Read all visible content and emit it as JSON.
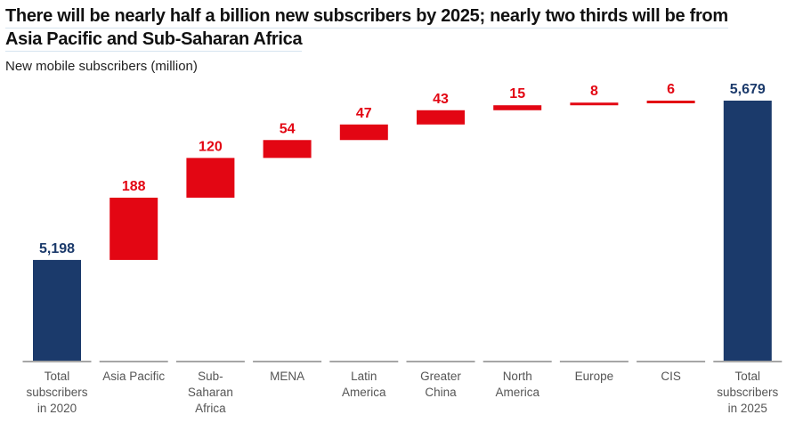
{
  "chart_data": {
    "type": "waterfall",
    "title_lines": [
      "There will be nearly half a billion new subscribers by 2025; nearly two thirds will be from",
      "Asia Pacific and Sub-Saharan Africa"
    ],
    "ylabel": "New mobile subscribers (million)",
    "categories": [
      [
        "Total",
        "subscribers",
        "in 2020"
      ],
      [
        "Asia Pacific"
      ],
      [
        "Sub-",
        "Saharan",
        "Africa"
      ],
      [
        "MENA"
      ],
      [
        "Latin",
        "America"
      ],
      [
        "Greater",
        "China"
      ],
      [
        "North",
        "America"
      ],
      [
        "Europe"
      ],
      [
        "CIS"
      ],
      [
        "Total",
        "subscribers",
        "in 2025"
      ]
    ],
    "values": [
      5198,
      188,
      120,
      54,
      47,
      43,
      15,
      8,
      6,
      5679
    ],
    "labels": [
      "5,198",
      "188",
      "120",
      "54",
      "47",
      "43",
      "15",
      "8",
      "6",
      "5,679"
    ],
    "kinds": [
      "total",
      "increase",
      "increase",
      "increase",
      "increase",
      "increase",
      "increase",
      "increase",
      "increase",
      "total"
    ],
    "ylim": [
      4894,
      5700
    ],
    "grid": false,
    "colors": {
      "total": "#1b3a6b",
      "increase": "#e30613",
      "axis": "#a6a6a6",
      "tick_text": "#555555"
    }
  }
}
